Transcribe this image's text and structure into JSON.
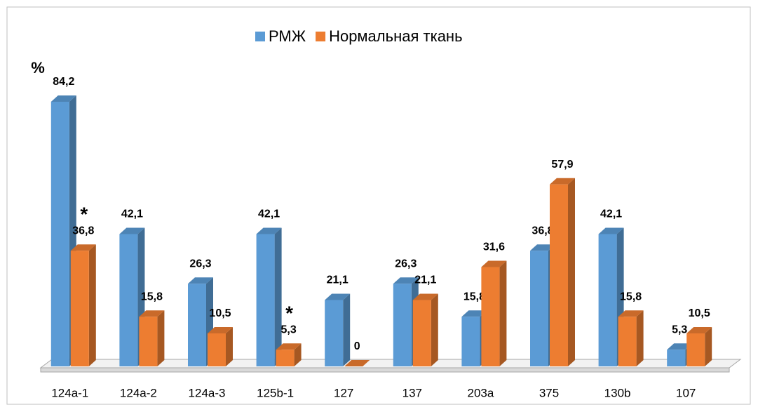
{
  "chart_data": {
    "type": "bar3d",
    "y_label": "%",
    "categories": [
      "124a-1",
      "124a-2",
      "124a-3",
      "125b-1",
      "127",
      "137",
      "203a",
      "375",
      "130b",
      "107"
    ],
    "series": [
      {
        "name": "РМЖ",
        "color": "#5b9bd5",
        "values": [
          84.2,
          42.1,
          26.3,
          42.1,
          21.1,
          26.3,
          15.8,
          36.8,
          42.1,
          5.3
        ],
        "value_labels": [
          "84,2",
          "42,1",
          "26,3",
          "42,1",
          "21,1",
          "26,3",
          "15,8",
          "36,8",
          "42,1",
          "5,3"
        ]
      },
      {
        "name": "Нормальная ткань",
        "color": "#ed7d31",
        "values": [
          36.8,
          15.8,
          10.5,
          5.3,
          0,
          21.1,
          31.6,
          57.9,
          15.8,
          10.5
        ],
        "value_labels": [
          "36,8",
          "15,8",
          "10,5",
          "5,3",
          "0",
          "21,1",
          "31,6",
          "57,9",
          "15,8",
          "10,5"
        ]
      }
    ],
    "annotations": [
      {
        "text": "*",
        "category": "124a-1"
      },
      {
        "text": "*",
        "category": "125b-1"
      }
    ],
    "ylim": [
      0,
      90
    ],
    "legend": "top"
  }
}
